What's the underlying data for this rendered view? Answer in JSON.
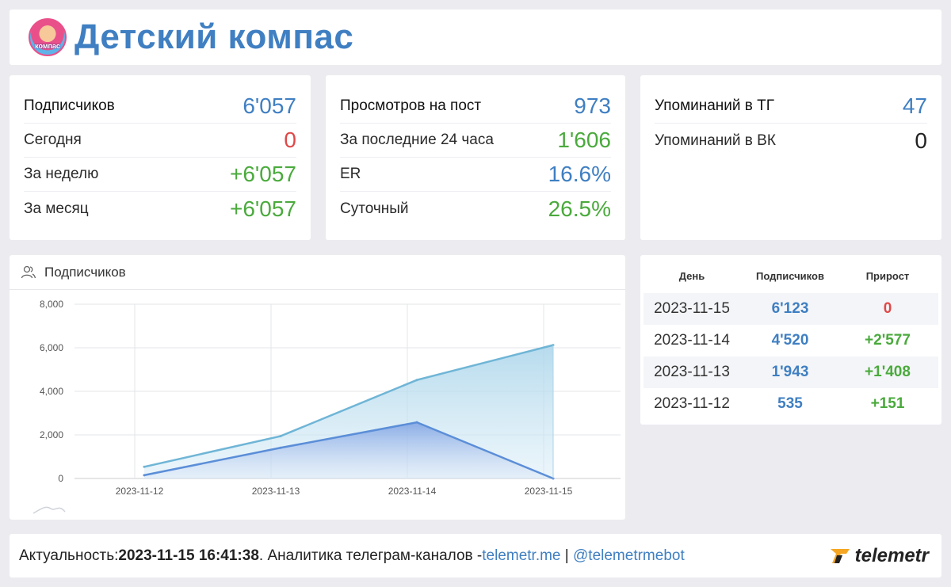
{
  "header": {
    "title": "Детский компас",
    "avatar_text": "компас",
    "avatar_icon": "avatar-icon"
  },
  "subscribers_card": {
    "main_label": "Подписчиков",
    "main_value": "6'057",
    "rows": [
      {
        "label": "Сегодня",
        "value": "0",
        "color": "#e04848"
      },
      {
        "label": "За неделю",
        "value": "+6'057",
        "color": "#4aaa3c"
      },
      {
        "label": "За месяц",
        "value": "+6'057",
        "color": "#4aaa3c"
      }
    ]
  },
  "views_card": {
    "main_label": "Просмотров на пост",
    "main_value": "973",
    "rows": [
      {
        "label": "За последние 24 часа",
        "value": "1'606",
        "color": "#4aaa3c"
      },
      {
        "label": "ER",
        "value": "16.6%",
        "color": "#3f7fc2"
      },
      {
        "label": "Суточный",
        "value": "26.5%",
        "color": "#4aaa3c"
      }
    ]
  },
  "mentions_card": {
    "main_label": "Упоминаний в ТГ",
    "main_value": "47",
    "rows": [
      {
        "label": "Упоминаний в ВК",
        "value": "0",
        "color": "#222222"
      }
    ]
  },
  "chart_panel": {
    "title": "Подписчиков",
    "icon": "users-icon"
  },
  "chart_data": {
    "type": "area",
    "categories": [
      "2023-11-12",
      "2023-11-13",
      "2023-11-14",
      "2023-11-15"
    ],
    "series": [
      {
        "values": [
          535,
          1943,
          4520,
          6123
        ],
        "color": "#6fb5d6"
      },
      {
        "values": [
          151,
          1408,
          2577,
          0
        ],
        "color": "#5b8ed8"
      }
    ],
    "ylim": [
      0,
      8000
    ],
    "yticks": [
      "0",
      "2,000",
      "4,000",
      "6,000",
      "8,000"
    ],
    "grid": true
  },
  "table": {
    "headers": [
      "День",
      "Подписчиков",
      "Прирост"
    ],
    "rows": [
      {
        "day": "2023-11-15",
        "subs": "6'123",
        "growth": "0",
        "growth_color": "#e04848"
      },
      {
        "day": "2023-11-14",
        "subs": "4'520",
        "growth": "+2'577",
        "growth_color": "#4aaa3c"
      },
      {
        "day": "2023-11-13",
        "subs": "1'943",
        "growth": "+1'408",
        "growth_color": "#4aaa3c"
      },
      {
        "day": "2023-11-12",
        "subs": "535",
        "growth": "+151",
        "growth_color": "#4aaa3c"
      }
    ]
  },
  "footer": {
    "prefix": "Актуальность: ",
    "timestamp": "2023-11-15 16:41:38",
    "middle": ". Аналитика телеграм-каналов - ",
    "link1": "telemetr.me",
    "separator": " | ",
    "link2": "@telemetrmebot",
    "logo_text": "telemetr",
    "logo_icon": "telemetr-logo-icon"
  }
}
